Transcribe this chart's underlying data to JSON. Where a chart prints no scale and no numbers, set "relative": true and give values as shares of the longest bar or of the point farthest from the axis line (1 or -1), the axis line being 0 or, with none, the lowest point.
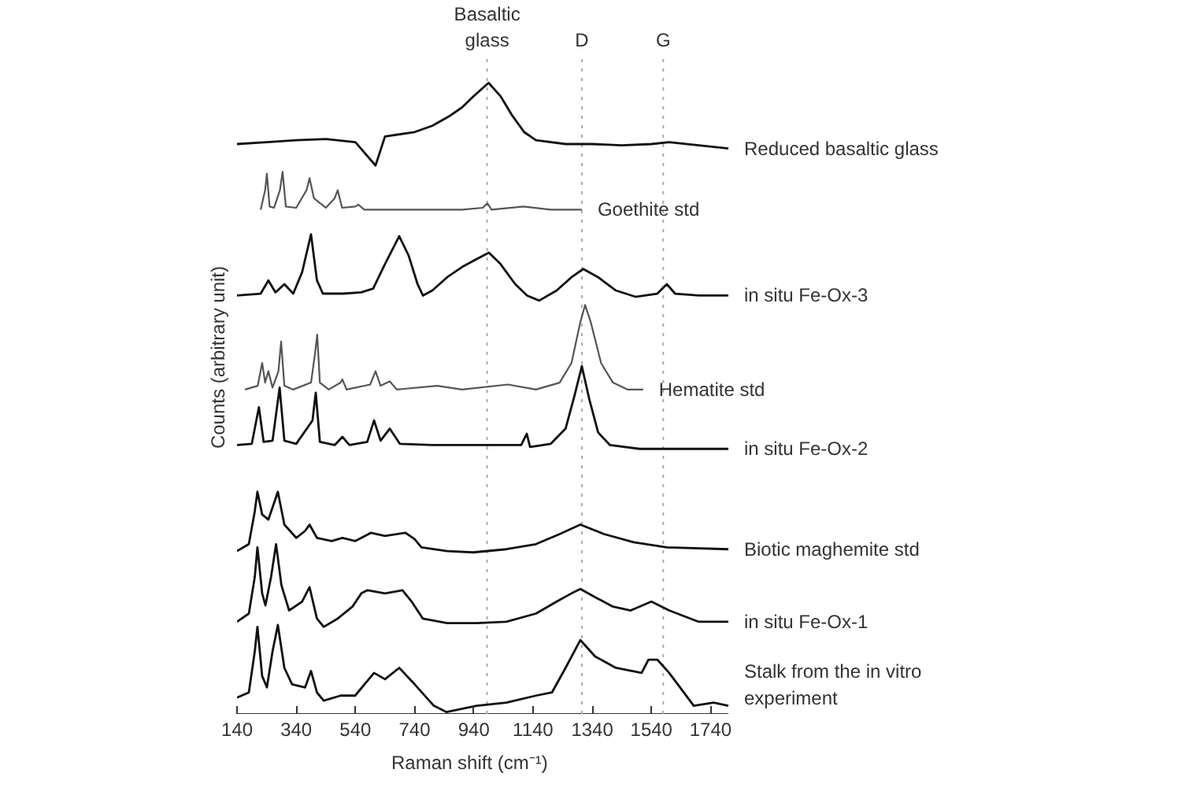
{
  "chart_data": {
    "type": "line",
    "relative": true,
    "xlabel": "Raman shift (cm⁻¹)",
    "ylabel": "Counts (arbitrary unit)",
    "xlim": [
      140,
      1800
    ],
    "xticks": [
      140,
      340,
      540,
      740,
      940,
      1140,
      1340,
      1540,
      1740
    ],
    "ref_lines": [
      {
        "axis": "x",
        "value": 985,
        "label": "Basaltic glass",
        "color": "#aaaaaa",
        "line_style": "dotted"
      },
      {
        "axis": "x",
        "value": 1305,
        "label": "D",
        "color": "#aaaaaa",
        "line_style": "dotted"
      },
      {
        "axis": "x",
        "value": 1580,
        "label": "G",
        "color": "#aaaaaa",
        "line_style": "dotted"
      }
    ],
    "series": [
      {
        "name": "Reduced basaltic glass",
        "color": "#111111",
        "x": [
          140,
          240,
          340,
          440,
          540,
          608,
          640,
          740,
          800,
          860,
          900,
          940,
          990,
          1030,
          1070,
          1110,
          1150,
          1250,
          1340,
          1440,
          1540,
          1600,
          1700,
          1800
        ],
        "values": [
          0.903,
          0.906,
          0.909,
          0.911,
          0.906,
          0.869,
          0.915,
          0.922,
          0.932,
          0.948,
          0.961,
          0.979,
          1.0,
          0.979,
          0.948,
          0.922,
          0.909,
          0.903,
          0.903,
          0.901,
          0.903,
          0.906,
          0.901,
          0.896
        ]
      },
      {
        "name": "Goethite std",
        "color": "#555555",
        "x": [
          220,
          235,
          241,
          250,
          265,
          285,
          294,
          305,
          340,
          375,
          385,
          400,
          440,
          470,
          480,
          495,
          540,
          550,
          570,
          700,
          900,
          970,
          986,
          1000,
          1108,
          1200,
          1305
        ],
        "values": [
          0.799,
          0.83,
          0.856,
          0.804,
          0.802,
          0.83,
          0.859,
          0.804,
          0.802,
          0.83,
          0.849,
          0.817,
          0.802,
          0.817,
          0.83,
          0.802,
          0.804,
          0.807,
          0.799,
          0.799,
          0.799,
          0.802,
          0.809,
          0.799,
          0.804,
          0.799,
          0.799
        ]
      },
      {
        "name": "in situ Fe-Ox-3",
        "color": "#111111",
        "x": [
          140,
          220,
          246,
          270,
          300,
          330,
          360,
          390,
          410,
          430,
          500,
          560,
          600,
          640,
          688,
          720,
          750,
          768,
          800,
          850,
          900,
          950,
          991,
          1030,
          1080,
          1120,
          1161,
          1220,
          1270,
          1310,
          1360,
          1420,
          1486,
          1560,
          1592,
          1620,
          1700,
          1800
        ],
        "values": [
          0.663,
          0.666,
          0.687,
          0.668,
          0.681,
          0.666,
          0.7,
          0.76,
          0.687,
          0.666,
          0.666,
          0.668,
          0.674,
          0.713,
          0.757,
          0.726,
          0.681,
          0.663,
          0.671,
          0.692,
          0.708,
          0.721,
          0.731,
          0.713,
          0.681,
          0.663,
          0.655,
          0.671,
          0.692,
          0.705,
          0.692,
          0.671,
          0.661,
          0.666,
          0.681,
          0.666,
          0.663,
          0.663
        ]
      },
      {
        "name": "Hematite std",
        "color": "#555555",
        "x": [
          167,
          210,
          225,
          235,
          246,
          260,
          280,
          289,
          300,
          330,
          390,
          403,
          411,
          420,
          450,
          490,
          496,
          510,
          590,
          608,
          625,
          656,
          680,
          816,
          900,
          1055,
          1150,
          1230,
          1270,
          1300,
          1316,
          1335,
          1370,
          1410,
          1460,
          1512
        ],
        "values": [
          0.514,
          0.52,
          0.556,
          0.525,
          0.543,
          0.517,
          0.543,
          0.59,
          0.52,
          0.514,
          0.525,
          0.569,
          0.601,
          0.525,
          0.514,
          0.525,
          0.53,
          0.514,
          0.522,
          0.543,
          0.52,
          0.527,
          0.514,
          0.52,
          0.514,
          0.522,
          0.514,
          0.525,
          0.556,
          0.621,
          0.648,
          0.621,
          0.556,
          0.525,
          0.514,
          0.514
        ]
      },
      {
        "name": "in situ Fe-Ox-2",
        "color": "#111111",
        "x": [
          140,
          190,
          214,
          230,
          260,
          284,
          300,
          340,
          395,
          406,
          420,
          470,
          496,
          520,
          580,
          603,
          625,
          656,
          690,
          800,
          950,
          1100,
          1119,
          1130,
          1200,
          1250,
          1280,
          1305,
          1330,
          1360,
          1400,
          1500,
          1600,
          1800
        ],
        "values": [
          0.426,
          0.428,
          0.486,
          0.431,
          0.433,
          0.517,
          0.433,
          0.428,
          0.465,
          0.509,
          0.431,
          0.426,
          0.439,
          0.426,
          0.431,
          0.465,
          0.433,
          0.452,
          0.428,
          0.426,
          0.426,
          0.426,
          0.444,
          0.423,
          0.428,
          0.452,
          0.504,
          0.551,
          0.499,
          0.446,
          0.426,
          0.42,
          0.42,
          0.42
        ]
      },
      {
        "name": "Biotic maghemite std",
        "color": "#111111",
        "x": [
          140,
          180,
          200,
          209,
          225,
          246,
          265,
          278,
          300,
          340,
          370,
          385,
          410,
          460,
          496,
          540,
          592,
          640,
          709,
          740,
          763,
          850,
          938,
          1050,
          1150,
          1230,
          1300,
          1380,
          1480,
          1592,
          1800
        ],
        "values": [
          0.258,
          0.269,
          0.321,
          0.352,
          0.316,
          0.308,
          0.334,
          0.352,
          0.3,
          0.279,
          0.29,
          0.3,
          0.279,
          0.274,
          0.279,
          0.274,
          0.287,
          0.282,
          0.287,
          0.277,
          0.264,
          0.258,
          0.256,
          0.261,
          0.269,
          0.285,
          0.3,
          0.285,
          0.272,
          0.264,
          0.261
        ]
      },
      {
        "name": "in situ Fe-Ox-1",
        "color": "#111111",
        "x": [
          140,
          180,
          200,
          209,
          225,
          236,
          255,
          272,
          290,
          316,
          360,
          385,
          410,
          433,
          480,
          530,
          560,
          581,
          640,
          699,
          730,
          768,
          850,
          950,
          1050,
          1150,
          1220,
          1270,
          1300,
          1350,
          1410,
          1470,
          1540,
          1600,
          1700,
          1800
        ],
        "values": [
          0.146,
          0.159,
          0.217,
          0.264,
          0.191,
          0.172,
          0.217,
          0.269,
          0.204,
          0.164,
          0.178,
          0.201,
          0.151,
          0.138,
          0.151,
          0.17,
          0.191,
          0.196,
          0.191,
          0.196,
          0.178,
          0.151,
          0.144,
          0.144,
          0.146,
          0.159,
          0.178,
          0.191,
          0.198,
          0.185,
          0.17,
          0.164,
          0.178,
          0.164,
          0.146,
          0.146
        ]
      },
      {
        "name": "Stalk from the in vitro experiment",
        "color": "#111111",
        "x": [
          140,
          180,
          200,
          209,
          225,
          241,
          260,
          278,
          300,
          326,
          370,
          390,
          410,
          433,
          490,
          539,
          603,
          640,
          688,
          740,
          805,
          847,
          950,
          1050,
          1150,
          1204,
          1250,
          1300,
          1350,
          1420,
          1507,
          1530,
          1560,
          1600,
          1629,
          1683,
          1750,
          1800
        ],
        "values": [
          0.026,
          0.034,
          0.099,
          0.138,
          0.06,
          0.042,
          0.099,
          0.141,
          0.073,
          0.047,
          0.042,
          0.068,
          0.034,
          0.021,
          0.029,
          0.029,
          0.065,
          0.055,
          0.073,
          0.047,
          0.013,
          0.003,
          0.013,
          0.018,
          0.029,
          0.034,
          0.073,
          0.117,
          0.091,
          0.073,
          0.065,
          0.086,
          0.086,
          0.065,
          0.047,
          0.013,
          0.018,
          0.013
        ]
      }
    ]
  }
}
